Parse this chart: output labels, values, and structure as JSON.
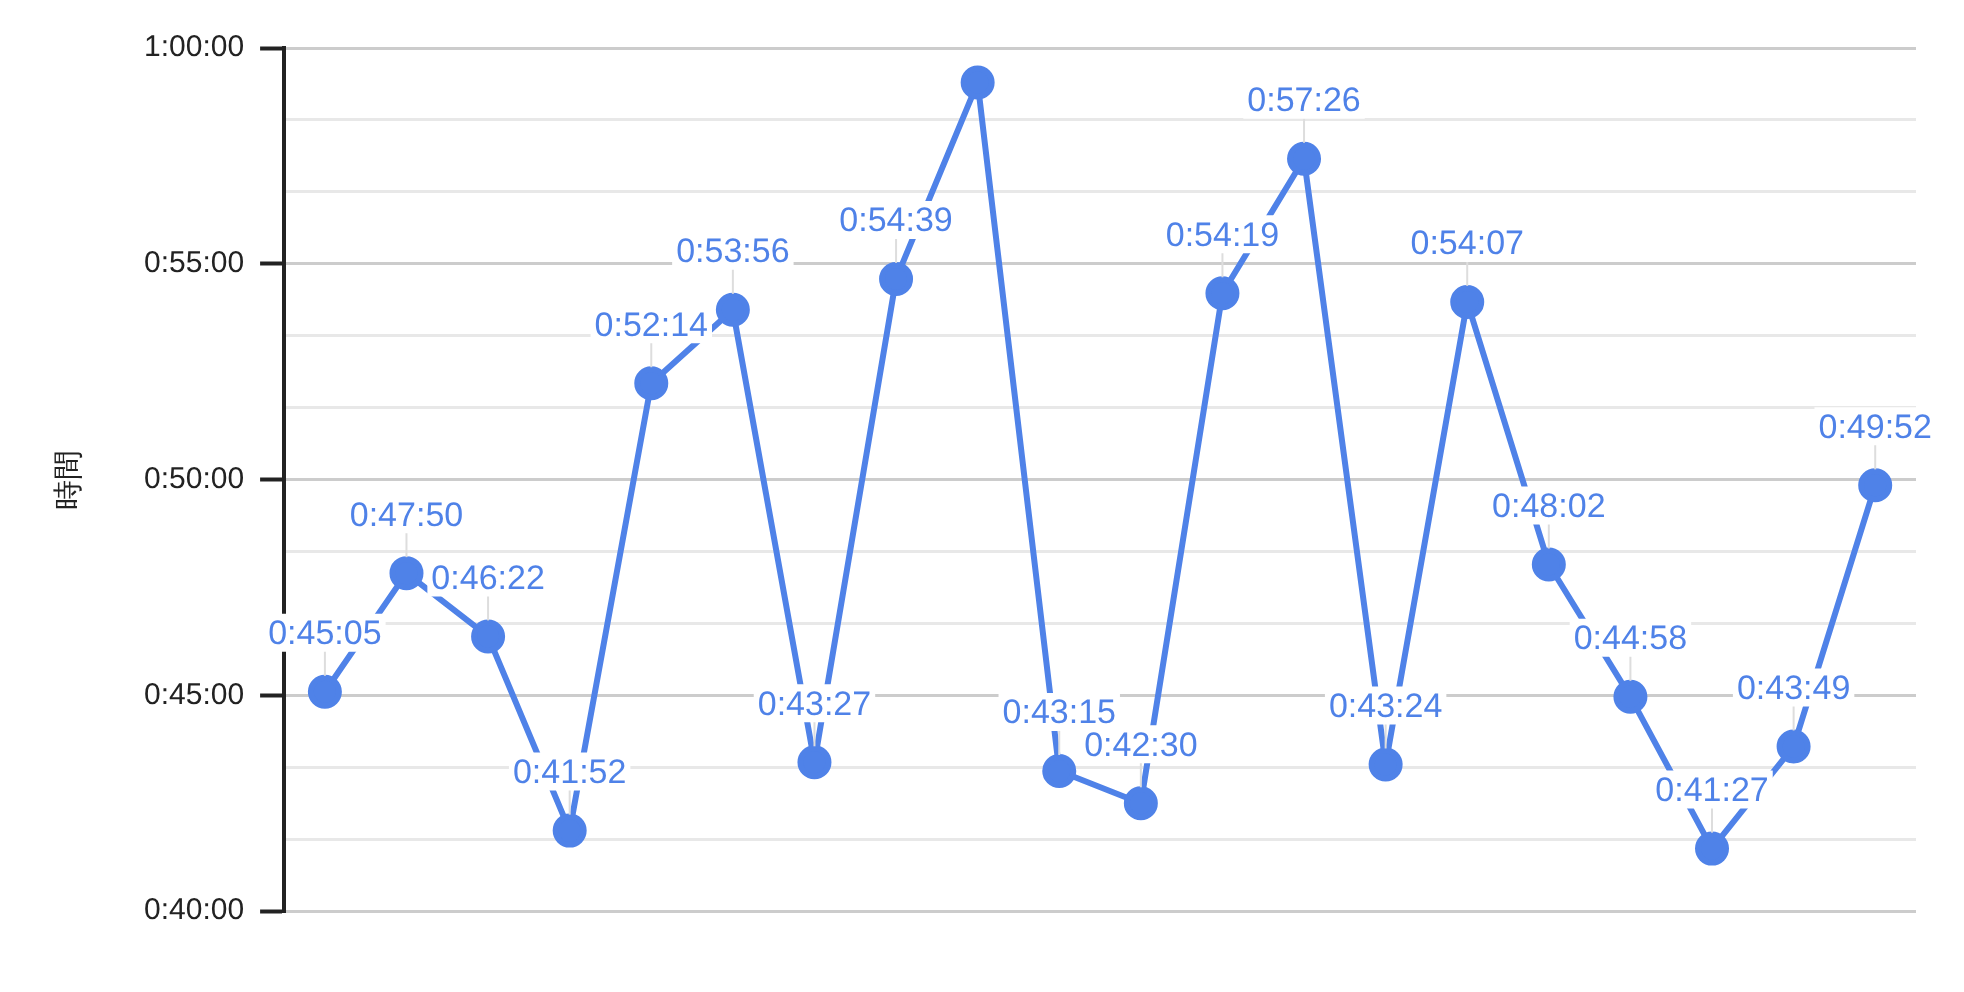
{
  "chart_data": {
    "type": "line",
    "ylabel": "時間",
    "categories": [
      null,
      null,
      null,
      null,
      null,
      null,
      null,
      null,
      null,
      null,
      null,
      null,
      null,
      null,
      null,
      null,
      null,
      null,
      null,
      null
    ],
    "series": [
      {
        "color": "#4f82e8",
        "values": [
          45.083,
          47.833,
          46.367,
          41.867,
          52.233,
          53.933,
          43.45,
          54.65,
          59.2,
          43.25,
          42.5,
          54.317,
          57.433,
          43.4,
          54.117,
          48.033,
          44.967,
          41.45,
          43.817,
          49.867
        ],
        "value_labels": [
          "0:45:05",
          "0:47:50",
          "0:46:22",
          "0:41:52",
          "0:52:14",
          "0:53:56",
          "0:43:27",
          "0:54:39",
          null,
          "0:43:15",
          "0:42:30",
          "0:54:19",
          "0:57:26",
          "0:43:24",
          "0:54:07",
          "0:48:02",
          "0:44:58",
          "0:41:27",
          "0:43:49",
          "0:49:52"
        ]
      }
    ],
    "ylim": [
      40,
      60
    ],
    "yticks": [
      {
        "value": 40,
        "label": "0:40:00"
      },
      {
        "value": 41.667,
        "label": null
      },
      {
        "value": 43.333,
        "label": null
      },
      {
        "value": 45,
        "label": "0:45:00"
      },
      {
        "value": 46.667,
        "label": null
      },
      {
        "value": 48.333,
        "label": null
      },
      {
        "value": 50,
        "label": "0:50:00"
      },
      {
        "value": 51.667,
        "label": null
      },
      {
        "value": 53.333,
        "label": null
      },
      {
        "value": 55,
        "label": "0:55:00"
      },
      {
        "value": 56.667,
        "label": null
      },
      {
        "value": 58.333,
        "label": null
      },
      {
        "value": 60,
        "label": "1:00:00"
      }
    ],
    "grid": "y",
    "marker": "circle",
    "line_style": "solid",
    "legend": false
  }
}
